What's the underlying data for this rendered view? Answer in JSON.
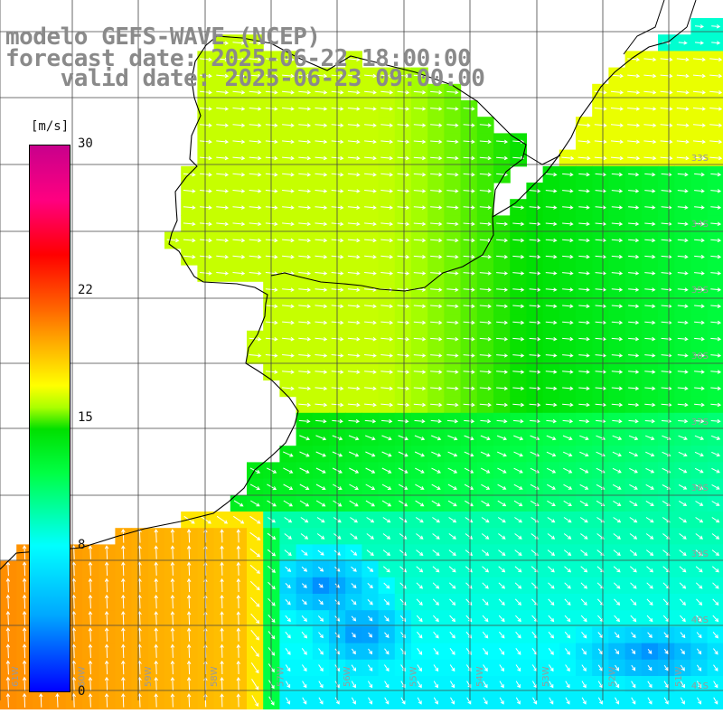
{
  "header": {
    "line1": "modelo GEFS-WAVE (NCEP)",
    "line2": "forecast date: 2025-06-22 18:00:00",
    "line3": "valid date: 2025-06-23 09:00:00"
  },
  "colorbar": {
    "unit": "[m/s]",
    "ticks": [
      {
        "label": "30",
        "value": 30
      },
      {
        "label": "22",
        "value": 22
      },
      {
        "label": "15",
        "value": 15
      },
      {
        "label": "8",
        "value": 8
      },
      {
        "label": "0",
        "value": 0
      }
    ],
    "range": [
      0,
      30
    ]
  },
  "map": {
    "lat_labels": [
      "33S",
      "34S",
      "35S",
      "36S",
      "37S",
      "38S",
      "39S",
      "40S",
      "41S"
    ],
    "lon_labels": [
      "61W",
      "60W",
      "59W",
      "58W",
      "57W",
      "56W",
      "55W",
      "54W",
      "53W",
      "52W",
      "51W"
    ],
    "lon_range": [
      -61.5,
      -50.6
    ],
    "lat_range": [
      -41.5,
      -31.3
    ],
    "colors": {
      "land": "#ffffff",
      "grid": "#444444",
      "coast": "#000000",
      "arrow": "#ffffff"
    }
  }
}
